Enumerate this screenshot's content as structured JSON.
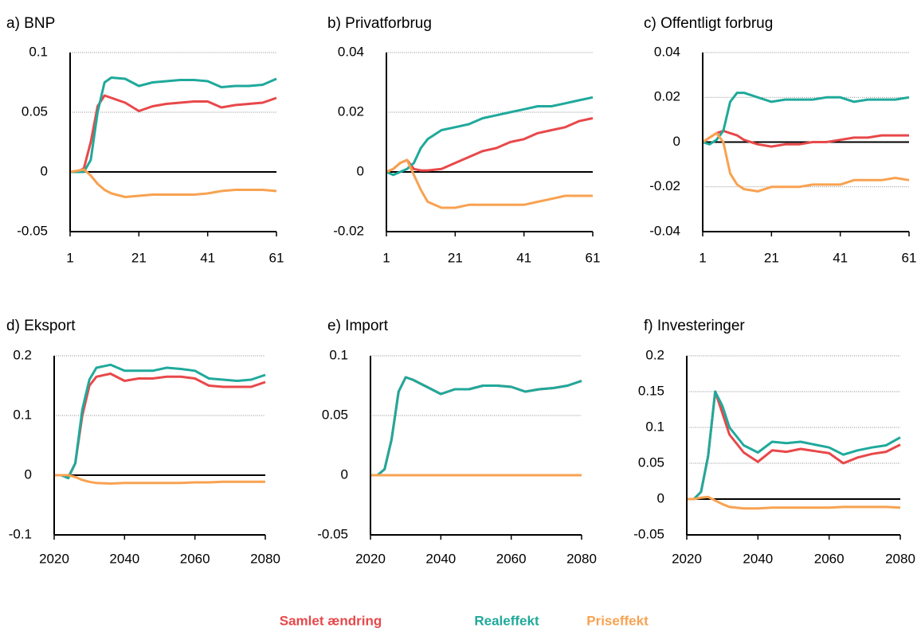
{
  "chart_data": [
    {
      "type": "line",
      "title": "a) BNP",
      "x": [
        1,
        3,
        5,
        7,
        9,
        11,
        13,
        17,
        21,
        25,
        29,
        33,
        37,
        41,
        45,
        49,
        53,
        57,
        61
      ],
      "xlim": [
        1,
        61
      ],
      "xticks": [
        1,
        21,
        41,
        61
      ],
      "ylim": [
        -0.05,
        0.1
      ],
      "yticks": [
        -0.05,
        0,
        0.05,
        0.1
      ],
      "grid": true,
      "series": [
        {
          "name": "Samlet ændring",
          "color": "#e8484a",
          "values": [
            0,
            0,
            0.003,
            0.025,
            0.055,
            0.064,
            0.062,
            0.058,
            0.051,
            0.055,
            0.057,
            0.058,
            0.059,
            0.059,
            0.054,
            0.056,
            0.057,
            0.058,
            0.062
          ]
        },
        {
          "name": "Realeffekt",
          "color": "#1fa99b",
          "values": [
            0,
            0,
            0,
            0.01,
            0.05,
            0.075,
            0.079,
            0.078,
            0.072,
            0.075,
            0.076,
            0.077,
            0.077,
            0.076,
            0.071,
            0.072,
            0.072,
            0.073,
            0.078
          ]
        },
        {
          "name": "Priseffekt",
          "color": "#f8a251",
          "values": [
            0,
            0.001,
            0.002,
            -0.003,
            -0.01,
            -0.015,
            -0.018,
            -0.021,
            -0.02,
            -0.019,
            -0.019,
            -0.019,
            -0.019,
            -0.018,
            -0.016,
            -0.015,
            -0.015,
            -0.015,
            -0.016
          ]
        }
      ]
    },
    {
      "type": "line",
      "title": "b) Privatforbrug",
      "x": [
        1,
        3,
        5,
        7,
        9,
        11,
        13,
        17,
        21,
        25,
        29,
        33,
        37,
        41,
        45,
        49,
        53,
        57,
        61
      ],
      "xlim": [
        1,
        61
      ],
      "xticks": [
        1,
        21,
        41,
        61
      ],
      "ylim": [
        -0.02,
        0.04
      ],
      "yticks": [
        -0.02,
        0,
        0.02,
        0.04
      ],
      "grid": true,
      "series": [
        {
          "name": "Samlet ændring",
          "color": "#e8484a",
          "values": [
            0,
            0.001,
            0.003,
            0.004,
            0.001,
            0.0005,
            0.0005,
            0.001,
            0.003,
            0.005,
            0.007,
            0.008,
            0.01,
            0.011,
            0.013,
            0.014,
            0.015,
            0.017,
            0.018
          ]
        },
        {
          "name": "Realeffekt",
          "color": "#1fa99b",
          "values": [
            0,
            -0.001,
            0,
            0.001,
            0.003,
            0.008,
            0.011,
            0.014,
            0.015,
            0.016,
            0.018,
            0.019,
            0.02,
            0.021,
            0.022,
            0.022,
            0.023,
            0.024,
            0.025
          ]
        },
        {
          "name": "Priseffekt",
          "color": "#f8a251",
          "values": [
            0,
            0.001,
            0.003,
            0.004,
            -0.001,
            -0.006,
            -0.01,
            -0.012,
            -0.012,
            -0.011,
            -0.011,
            -0.011,
            -0.011,
            -0.011,
            -0.01,
            -0.009,
            -0.008,
            -0.008,
            -0.008
          ]
        }
      ]
    },
    {
      "type": "line",
      "title": "c) Offentligt forbrug",
      "x": [
        1,
        3,
        5,
        7,
        9,
        11,
        13,
        17,
        21,
        25,
        29,
        33,
        37,
        41,
        45,
        49,
        53,
        57,
        61
      ],
      "xlim": [
        1,
        61
      ],
      "xticks": [
        1,
        21,
        41,
        61
      ],
      "ylim": [
        -0.04,
        0.04
      ],
      "yticks": [
        -0.04,
        -0.02,
        0,
        0.02,
        0.04
      ],
      "grid": true,
      "series": [
        {
          "name": "Samlet ændring",
          "color": "#e8484a",
          "values": [
            0,
            0.002,
            0.004,
            0.005,
            0.004,
            0.003,
            0.001,
            -0.001,
            -0.002,
            -0.001,
            -0.001,
            0,
            0,
            0.001,
            0.002,
            0.002,
            0.003,
            0.003,
            0.003
          ]
        },
        {
          "name": "Realeffekt",
          "color": "#1fa99b",
          "values": [
            0,
            -0.001,
            0.001,
            0.005,
            0.018,
            0.022,
            0.022,
            0.02,
            0.018,
            0.019,
            0.019,
            0.019,
            0.02,
            0.02,
            0.018,
            0.019,
            0.019,
            0.019,
            0.02
          ]
        },
        {
          "name": "Priseffekt",
          "color": "#f8a251",
          "values": [
            0,
            0.002,
            0.004,
            0,
            -0.014,
            -0.019,
            -0.021,
            -0.022,
            -0.02,
            -0.02,
            -0.02,
            -0.019,
            -0.019,
            -0.019,
            -0.017,
            -0.017,
            -0.017,
            -0.016,
            -0.017
          ]
        }
      ]
    },
    {
      "type": "line",
      "title": "d) Eksport",
      "x": [
        2020,
        2022,
        2024,
        2026,
        2028,
        2030,
        2032,
        2036,
        2040,
        2044,
        2048,
        2052,
        2056,
        2060,
        2064,
        2068,
        2072,
        2076,
        2080
      ],
      "xlim": [
        2020,
        2080
      ],
      "xticks": [
        2020,
        2040,
        2060,
        2080
      ],
      "ylim": [
        -0.1,
        0.2
      ],
      "yticks": [
        -0.1,
        0,
        0.1,
        0.2
      ],
      "grid": true,
      "series": [
        {
          "name": "Samlet ændring",
          "color": "#e8484a",
          "values": [
            0,
            0,
            -0.003,
            0.02,
            0.1,
            0.15,
            0.165,
            0.17,
            0.158,
            0.162,
            0.162,
            0.165,
            0.165,
            0.162,
            0.15,
            0.148,
            0.148,
            0.148,
            0.156
          ]
        },
        {
          "name": "Realeffekt",
          "color": "#1fa99b",
          "values": [
            0,
            0,
            -0.005,
            0.02,
            0.11,
            0.16,
            0.18,
            0.185,
            0.175,
            0.175,
            0.175,
            0.18,
            0.178,
            0.175,
            0.162,
            0.16,
            0.158,
            0.16,
            0.168
          ]
        },
        {
          "name": "Priseffekt",
          "color": "#f8a251",
          "values": [
            0,
            0,
            0,
            -0.003,
            -0.008,
            -0.011,
            -0.013,
            -0.014,
            -0.013,
            -0.013,
            -0.013,
            -0.013,
            -0.013,
            -0.012,
            -0.012,
            -0.011,
            -0.011,
            -0.011,
            -0.011
          ]
        }
      ]
    },
    {
      "type": "line",
      "title": "e) Import",
      "x": [
        2020,
        2022,
        2024,
        2026,
        2028,
        2030,
        2032,
        2036,
        2040,
        2044,
        2048,
        2052,
        2056,
        2060,
        2064,
        2068,
        2072,
        2076,
        2080
      ],
      "xlim": [
        2020,
        2080
      ],
      "xticks": [
        2020,
        2040,
        2060,
        2080
      ],
      "ylim": [
        -0.05,
        0.1
      ],
      "yticks": [
        -0.05,
        0,
        0.05,
        0.1
      ],
      "grid": true,
      "series": [
        {
          "name": "Samlet ændring",
          "color": "#e8484a",
          "values": [
            0,
            0,
            0.005,
            0.03,
            0.07,
            0.082,
            0.08,
            0.074,
            0.068,
            0.072,
            0.072,
            0.075,
            0.075,
            0.074,
            0.07,
            0.072,
            0.073,
            0.075,
            0.079
          ]
        },
        {
          "name": "Realeffekt",
          "color": "#1fa99b",
          "values": [
            0,
            0,
            0.005,
            0.03,
            0.07,
            0.082,
            0.08,
            0.074,
            0.068,
            0.072,
            0.072,
            0.075,
            0.075,
            0.074,
            0.07,
            0.072,
            0.073,
            0.075,
            0.079
          ]
        },
        {
          "name": "Priseffekt",
          "color": "#f8a251",
          "values": [
            0,
            0,
            0,
            0,
            0,
            0,
            0,
            0,
            0,
            0,
            0,
            0,
            0,
            0,
            0,
            0,
            0,
            0,
            0
          ]
        }
      ]
    },
    {
      "type": "line",
      "title": "f) Investeringer",
      "x": [
        2020,
        2022,
        2024,
        2026,
        2028,
        2030,
        2032,
        2036,
        2040,
        2044,
        2048,
        2052,
        2056,
        2060,
        2064,
        2068,
        2072,
        2076,
        2080
      ],
      "xlim": [
        2020,
        2080
      ],
      "xticks": [
        2020,
        2040,
        2060,
        2080
      ],
      "ylim": [
        -0.05,
        0.2
      ],
      "yticks": [
        -0.05,
        0,
        0.05,
        0.1,
        0.15,
        0.2
      ],
      "grid": true,
      "series": [
        {
          "name": "Samlet ændring",
          "color": "#e8484a",
          "values": [
            0,
            0,
            0.01,
            0.06,
            0.15,
            0.12,
            0.09,
            0.065,
            0.052,
            0.068,
            0.066,
            0.07,
            0.067,
            0.064,
            0.05,
            0.058,
            0.063,
            0.066,
            0.076
          ]
        },
        {
          "name": "Realeffekt",
          "color": "#1fa99b",
          "values": [
            0,
            0,
            0.01,
            0.06,
            0.15,
            0.13,
            0.1,
            0.075,
            0.065,
            0.08,
            0.078,
            0.08,
            0.076,
            0.072,
            0.062,
            0.068,
            0.072,
            0.075,
            0.086
          ]
        },
        {
          "name": "Priseffekt",
          "color": "#f8a251",
          "values": [
            0,
            0,
            0.002,
            0.003,
            -0.002,
            -0.007,
            -0.011,
            -0.013,
            -0.013,
            -0.012,
            -0.012,
            -0.012,
            -0.012,
            -0.012,
            -0.011,
            -0.011,
            -0.011,
            -0.011,
            -0.012
          ]
        }
      ]
    }
  ]
}
